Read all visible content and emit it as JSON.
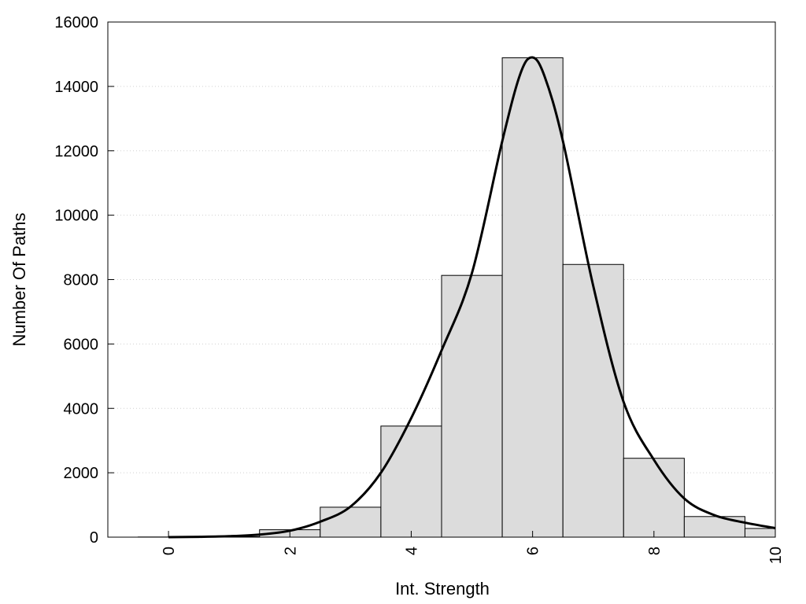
{
  "chart_data": {
    "type": "bar",
    "title": "",
    "xlabel": "Int. Strength",
    "ylabel": "Number Of Paths",
    "xlim": [
      -1,
      10
    ],
    "ylim": [
      0,
      16000
    ],
    "x_ticks": [
      0,
      2,
      4,
      6,
      8,
      10
    ],
    "y_ticks": [
      0,
      2000,
      4000,
      6000,
      8000,
      10000,
      12000,
      14000,
      16000
    ],
    "grid": "horizontal dotted",
    "legend": "none",
    "bin_width": 1,
    "bin_centers": [
      0,
      1,
      2,
      3,
      4,
      5,
      6,
      7,
      8,
      9,
      10
    ],
    "values": [
      5,
      15,
      230,
      930,
      3450,
      8130,
      14890,
      8470,
      2450,
      640,
      270
    ],
    "curve": {
      "x": [
        0,
        0.5,
        1,
        1.5,
        2,
        2.5,
        3,
        3.5,
        4,
        4.5,
        5,
        5.5,
        5.8,
        6,
        6.2,
        6.5,
        7,
        7.5,
        8,
        8.5,
        9,
        9.5,
        10
      ],
      "y": [
        0,
        10,
        30,
        80,
        200,
        480,
        950,
        2000,
        3700,
        5800,
        8200,
        12300,
        14400,
        14900,
        14300,
        12300,
        7800,
        4200,
        2400,
        1200,
        680,
        450,
        280
      ]
    },
    "colors": {
      "bar_fill": "#dcdcdc",
      "bar_stroke": "#000000",
      "curve": "#000000",
      "grid": "#cfcfcf"
    }
  }
}
